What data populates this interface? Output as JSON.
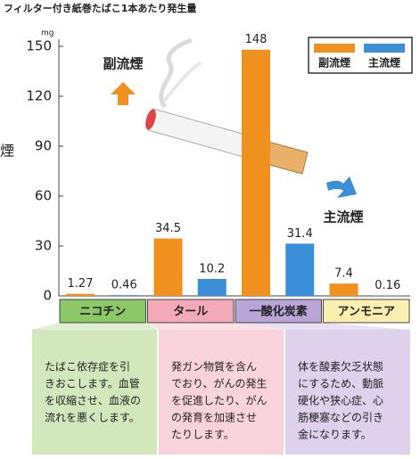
{
  "chart_data": {
    "type": "bar",
    "title": "フィルター付き紙巻たばこ1本あたり発生量",
    "y_unit": "mg",
    "left_edge_text": "煙",
    "categories": [
      "ニコチン",
      "タール",
      "一酸化炭素",
      "アンモニア"
    ],
    "category_colors": [
      "#8cc865",
      "#f4a9b8",
      "#b9a6d6",
      "#fbefb0"
    ],
    "description_colors": [
      "#d2e8bc",
      "#f9d3db",
      "#ddd1ec"
    ],
    "series": [
      {
        "name": "副流煙",
        "color": "#f0901e",
        "values": [
          1.27,
          34.5,
          148,
          7.4
        ]
      },
      {
        "name": "主流煙",
        "color": "#3a8fd8",
        "values": [
          0.46,
          10.2,
          31.4,
          0.16
        ]
      }
    ],
    "ylim": [
      0,
      150
    ],
    "yticks": [
      0,
      30,
      60,
      90,
      120,
      150
    ],
    "legend": "top-right",
    "annotations": [
      "副流煙",
      "主流煙"
    ],
    "descriptions": [
      [
        "たばこ依存症を引",
        "きおこします。血管",
        "を収縮させ、血液の",
        "流れを悪くします。"
      ],
      [
        "発ガン物質を含ん",
        "でおり、がんの発生",
        "を促進したり、がん",
        "の発育を加速させ",
        "たりします。"
      ],
      [
        "体を酸素欠乏状態",
        "にするため、動脈",
        "硬化や狭心症、心",
        "筋梗塞などの引き",
        "金になります。"
      ]
    ]
  }
}
